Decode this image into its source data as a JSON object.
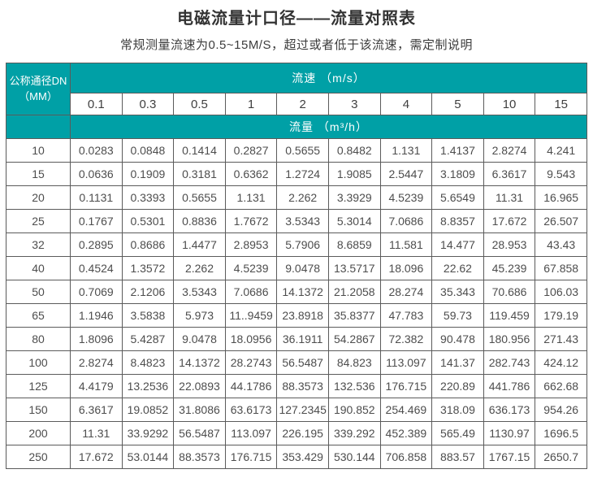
{
  "header": {
    "title": "电磁流量计口径——流量对照表",
    "subtitle": "常规测量流速为0.5~15M/S，超过或者低于该流速，需定制说明"
  },
  "colors": {
    "teal_header": "#00a0a6",
    "border": "#5b5b5b",
    "title_text": "#333333",
    "cell_text": "#4d4d4d"
  },
  "table": {
    "corner_line1": "公称通径DN",
    "corner_line2": "（MM）",
    "speed_header": "流速 （m/s）",
    "flow_header": "流量 （m³/h）",
    "speeds": [
      "0.1",
      "0.3",
      "0.5",
      "1",
      "2",
      "3",
      "4",
      "5",
      "10",
      "15"
    ],
    "rows": [
      {
        "dn": "10",
        "values": [
          "0.0283",
          "0.0848",
          "0.1414",
          "0.2827",
          "0.5655",
          "0.8482",
          "1.131",
          "1.4137",
          "2.8274",
          "4.241"
        ]
      },
      {
        "dn": "15",
        "values": [
          "0.0636",
          "0.1909",
          "0.3181",
          "0.6362",
          "1.2724",
          "1.9085",
          "2.5447",
          "3.1809",
          "6.3617",
          "9.543"
        ]
      },
      {
        "dn": "20",
        "values": [
          "0.1131",
          "0.3393",
          "0.5655",
          "1.131",
          "2.262",
          "3.3929",
          "4.5239",
          "5.6549",
          "11.31",
          "16.965"
        ]
      },
      {
        "dn": "25",
        "values": [
          "0.1767",
          "0.5301",
          "0.8836",
          "1.7672",
          "3.5343",
          "5.3014",
          "7.0686",
          "8.8357",
          "17.672",
          "26.507"
        ]
      },
      {
        "dn": "32",
        "values": [
          "0.2895",
          "0.8686",
          "1.4477",
          "2.8953",
          "5.7906",
          "8.6859",
          "11.581",
          "14.477",
          "28.953",
          "43.43"
        ]
      },
      {
        "dn": "40",
        "values": [
          "0.4524",
          "1.3572",
          "2.262",
          "4.5239",
          "9.0478",
          "13.5717",
          "18.096",
          "22.62",
          "45.239",
          "67.858"
        ]
      },
      {
        "dn": "50",
        "values": [
          "0.7069",
          "2.1206",
          "3.5343",
          "7.0686",
          "14.1372",
          "21.2058",
          "28.274",
          "35.343",
          "70.686",
          "106.03"
        ]
      },
      {
        "dn": "65",
        "values": [
          "1.1946",
          "3.5838",
          "5.973",
          "11..9459",
          "23.8918",
          "35.8377",
          "47.783",
          "59.73",
          "119.459",
          "179.19"
        ]
      },
      {
        "dn": "80",
        "values": [
          "1.8096",
          "5.4287",
          "9.0478",
          "18.0956",
          "36.1911",
          "54.2867",
          "72.382",
          "90.478",
          "180.956",
          "271.43"
        ]
      },
      {
        "dn": "100",
        "values": [
          "2.8274",
          "8.4823",
          "14.1372",
          "28.2743",
          "56.5487",
          "84.823",
          "113.097",
          "141.37",
          "282.743",
          "424.12"
        ]
      },
      {
        "dn": "125",
        "values": [
          "4.4179",
          "13.2536",
          "22.0893",
          "44.1786",
          "88.3573",
          "132.536",
          "176.715",
          "220.89",
          "441.786",
          "662.68"
        ]
      },
      {
        "dn": "150",
        "values": [
          "6.3617",
          "19.0852",
          "31.8086",
          "63.6173",
          "127.2345",
          "190.852",
          "254.469",
          "318.09",
          "636.173",
          "954.26"
        ]
      },
      {
        "dn": "200",
        "values": [
          "11.31",
          "33.9292",
          "56.5487",
          "113.097",
          "226.195",
          "339.292",
          "452.389",
          "565.49",
          "1130.97",
          "1696.5"
        ]
      },
      {
        "dn": "250",
        "values": [
          "17.672",
          "53.0144",
          "88.3573",
          "176.715",
          "353.429",
          "530.144",
          "706.858",
          "883.57",
          "1767.15",
          "2650.7"
        ]
      }
    ]
  }
}
